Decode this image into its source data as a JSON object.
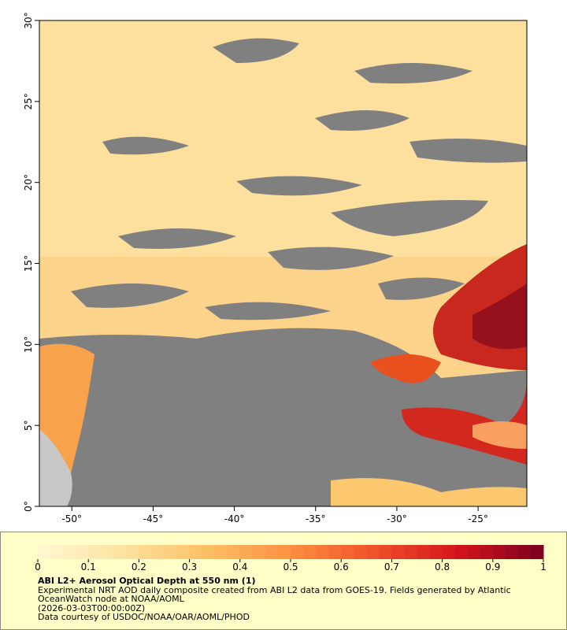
{
  "map": {
    "xlim": [
      -52,
      -22
    ],
    "ylim": [
      0,
      30
    ],
    "xticks": [
      {
        "value": -50,
        "label": "-50°"
      },
      {
        "value": -45,
        "label": "-45°"
      },
      {
        "value": -40,
        "label": "-40°"
      },
      {
        "value": -35,
        "label": "-35°"
      },
      {
        "value": -30,
        "label": "-30°"
      },
      {
        "value": -25,
        "label": "-25°"
      }
    ],
    "yticks": [
      {
        "value": 0,
        "label": "0°"
      },
      {
        "value": 5,
        "label": "5°"
      },
      {
        "value": 10,
        "label": "10°"
      },
      {
        "value": 15,
        "label": "15°"
      },
      {
        "value": 20,
        "label": "20°"
      },
      {
        "value": 25,
        "label": "25°"
      },
      {
        "value": 30,
        "label": "30°"
      }
    ]
  },
  "colorbar": {
    "title": "ABI L2+ Aerosol Optical Depth at 550 nm (1)",
    "lim": [
      0,
      1
    ],
    "ticks": [
      0,
      0.1,
      0.2,
      0.3,
      0.4,
      0.5,
      0.6,
      0.7,
      0.8,
      0.9,
      1
    ],
    "colors": [
      "#fff7d2",
      "#fde3a0",
      "#fdc066",
      "#fb9040",
      "#f0502a",
      "#d2141a",
      "#7a0020"
    ]
  },
  "caption": [
    "Experimental NRT AOD daily composite created from ABI L2 data from GOES-19. Fields generated by Atlantic OceanWatch node at NOAA/AOML",
    "(2026-03-03T00:00:00Z)",
    "Data courtesy of USDOC/NOAA/OAR/AOML/PHOD"
  ]
}
